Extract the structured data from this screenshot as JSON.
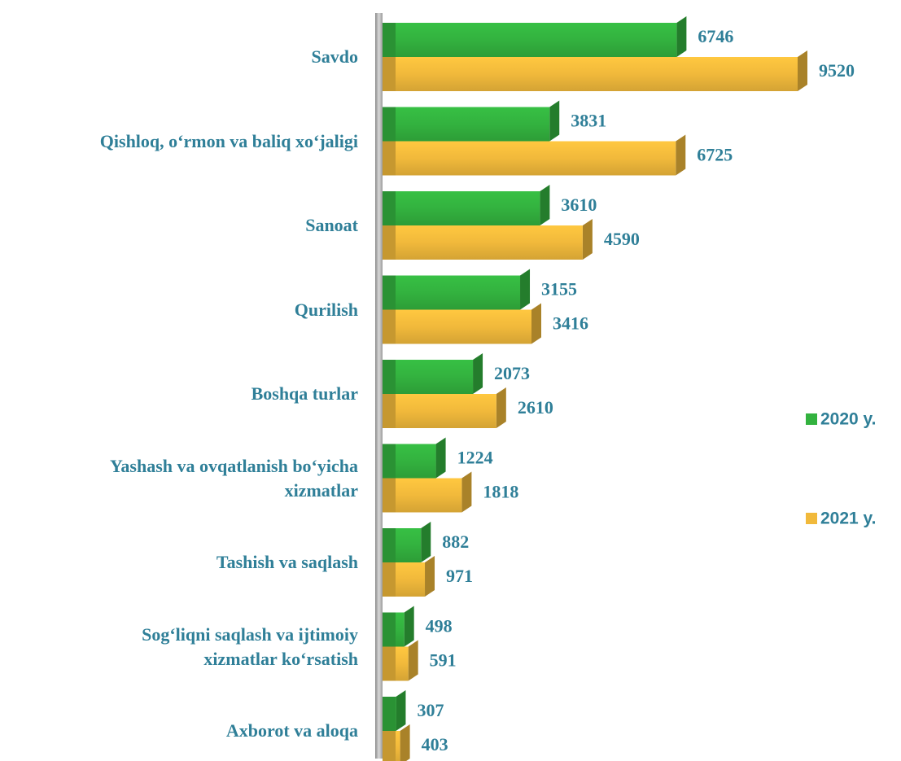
{
  "chart_data": {
    "type": "bar",
    "orientation": "horizontal",
    "categories": [
      "Savdo",
      "Qishloq, o‘rmon  va baliq xo‘jaligi",
      "Sanoat",
      "Qurilish",
      "Boshqa turlar",
      "Yashash va ovqatlanish bo‘yicha\nxizmatlar",
      "Tashish va saqlash",
      "Sog‘liqni saqlash va ijtimoiy\nxizmatlar ko‘rsatish",
      "Axborot va aloqa"
    ],
    "series": [
      {
        "name": "2020 y.",
        "color": "#33b23f",
        "values": [
          6746,
          3831,
          3610,
          3155,
          2073,
          1224,
          882,
          498,
          307
        ]
      },
      {
        "name": "2021 y.",
        "color": "#f1b93b",
        "values": [
          9520,
          6725,
          4590,
          3416,
          2610,
          1818,
          971,
          591,
          403
        ]
      }
    ],
    "legend": "right"
  }
}
